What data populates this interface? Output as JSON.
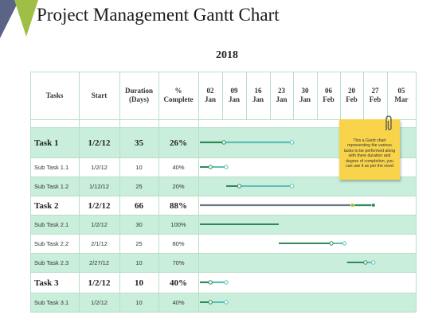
{
  "header": {
    "title": "Project Management Gantt Chart",
    "year": "2018"
  },
  "columns": {
    "tasks": "Tasks",
    "start": "Start",
    "duration": [
      "Duration",
      "(Days)"
    ],
    "complete": [
      "%",
      "Complete"
    ],
    "dates": [
      [
        "02",
        "Jan"
      ],
      [
        "09",
        "Jan"
      ],
      [
        "16",
        "Jan"
      ],
      [
        "23",
        "Jan"
      ],
      [
        "30",
        "Jan"
      ],
      [
        "06",
        "Feb"
      ],
      [
        "20",
        "Feb"
      ],
      [
        "27",
        "Feb"
      ],
      [
        "05",
        "Mar"
      ]
    ]
  },
  "rows": [
    {
      "kind": "main",
      "name": "Task 1",
      "start": "1/2/12",
      "duration": "35",
      "complete": "26%",
      "tint": true
    },
    {
      "kind": "sub",
      "name": "Sub Task 1.1",
      "start": "1/2/12",
      "duration": "10",
      "complete": "40%",
      "tint": false
    },
    {
      "kind": "sub",
      "name": "Sub Task 1.2",
      "start": "1/12/12",
      "duration": "25",
      "complete": "20%",
      "tint": true
    },
    {
      "kind": "main",
      "name": "Task 2",
      "start": "1/2/12",
      "duration": "66",
      "complete": "88%",
      "tint": false
    },
    {
      "kind": "sub",
      "name": "Sub Task 2.1",
      "start": "1/2/12",
      "duration": "30",
      "complete": "100%",
      "tint": true
    },
    {
      "kind": "sub",
      "name": "Sub Task 2.2",
      "start": "2/1/12",
      "duration": "25",
      "complete": "80%",
      "tint": false
    },
    {
      "kind": "sub",
      "name": "Sub Task 2.3",
      "start": "2/27/12",
      "duration": "10",
      "complete": "70%",
      "tint": true
    },
    {
      "kind": "main",
      "name": "Task 3",
      "start": "1/2/12",
      "duration": "10",
      "complete": "40%",
      "tint": false
    },
    {
      "kind": "sub",
      "name": "Sub Task 3.1",
      "start": "1/2/12",
      "duration": "10",
      "complete": "40%",
      "tint": true
    }
  ],
  "note": {
    "text": "This a Gantt chart representing the various tasks to be performed along with there duration and degree of completion, you can use it as per the need"
  },
  "colors": {
    "done": "#2f8a57",
    "remaining": "#5bc0b4",
    "progress_marker": "#a8b820",
    "summary": "#6b7585",
    "row_tint": "#c9eedb",
    "grid_line": "#b8dfc6",
    "note": "#f9d44a"
  },
  "chart_data": {
    "type": "gantt",
    "x_ticks": [
      "02 Jan",
      "09 Jan",
      "16 Jan",
      "23 Jan",
      "30 Jan",
      "06 Feb",
      "20 Feb",
      "27 Feb",
      "05 Mar"
    ],
    "tasks": [
      {
        "name": "Task 1",
        "start": "1/2/12",
        "duration": 35,
        "complete": 26
      },
      {
        "name": "Sub Task 1.1",
        "start": "1/2/12",
        "duration": 10,
        "complete": 40
      },
      {
        "name": "Sub Task 1.2",
        "start": "1/12/12",
        "duration": 25,
        "complete": 20
      },
      {
        "name": "Task 2",
        "start": "1/2/12",
        "duration": 66,
        "complete": 88
      },
      {
        "name": "Sub Task 2.1",
        "start": "1/2/12",
        "duration": 30,
        "complete": 100
      },
      {
        "name": "Sub Task 2.2",
        "start": "2/1/12",
        "duration": 25,
        "complete": 80
      },
      {
        "name": "Sub Task 2.3",
        "start": "2/27/12",
        "duration": 10,
        "complete": 70
      },
      {
        "name": "Task 3",
        "start": "1/2/12",
        "duration": 10,
        "complete": 40
      },
      {
        "name": "Sub Task 3.1",
        "start": "1/2/12",
        "duration": 10,
        "complete": 40
      }
    ]
  }
}
